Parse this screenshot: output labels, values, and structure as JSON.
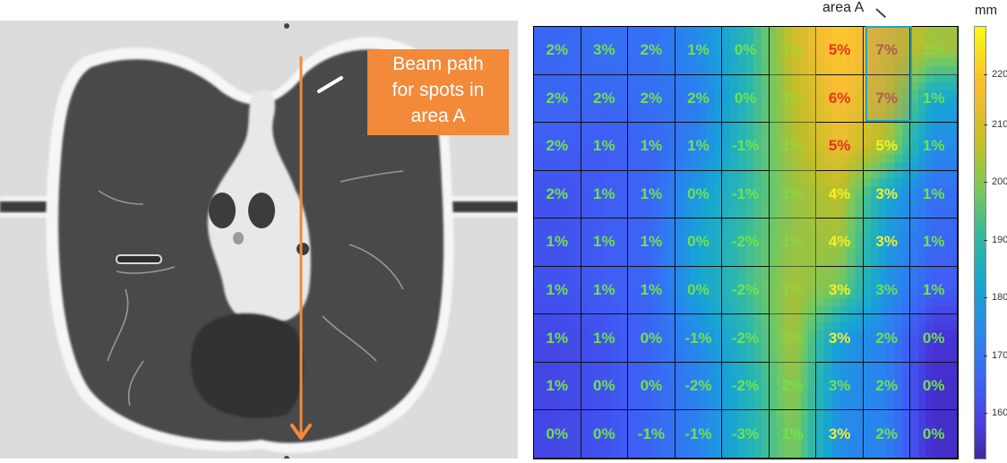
{
  "ct_panel": {
    "annotation": {
      "lines": [
        "Beam path",
        "for spots in",
        "area A"
      ],
      "color": "#f28a3a"
    },
    "beam_arrow_color": "#f28a3a"
  },
  "heatmap": {
    "area_label": "area A",
    "area_box_color": "#1fa3c9"
  },
  "colorbar": {
    "unit": "mm",
    "ticks": [
      "220",
      "210",
      "200",
      "190",
      "180",
      "170",
      "160"
    ]
  },
  "chart_data": {
    "type": "heatmap",
    "title": "",
    "xlabel": "",
    "ylabel": "",
    "grid": true,
    "rows": 9,
    "cols": 9,
    "cell_labels": [
      [
        "2%",
        "3%",
        "2%",
        "1%",
        "0%",
        "1%",
        "5%",
        "7%",
        "1%"
      ],
      [
        "2%",
        "2%",
        "2%",
        "2%",
        "0%",
        "1%",
        "6%",
        "7%",
        "1%"
      ],
      [
        "2%",
        "1%",
        "1%",
        "1%",
        "-1%",
        "1%",
        "5%",
        "5%",
        "1%"
      ],
      [
        "2%",
        "1%",
        "1%",
        "0%",
        "-1%",
        "1%",
        "4%",
        "3%",
        "1%"
      ],
      [
        "1%",
        "1%",
        "1%",
        "0%",
        "-2%",
        "1%",
        "4%",
        "3%",
        "1%"
      ],
      [
        "1%",
        "1%",
        "1%",
        "0%",
        "-2%",
        "1%",
        "3%",
        "3%",
        "1%"
      ],
      [
        "1%",
        "1%",
        "0%",
        "-1%",
        "-2%",
        "2%",
        "3%",
        "2%",
        "0%"
      ],
      [
        "1%",
        "0%",
        "0%",
        "-2%",
        "-2%",
        "2%",
        "3%",
        "2%",
        "0%"
      ],
      [
        "0%",
        "0%",
        "-1%",
        "-1%",
        "-3%",
        "1%",
        "3%",
        "2%",
        "0%"
      ]
    ],
    "label_colors": [
      [
        "green",
        "green",
        "green",
        "green",
        "green",
        "faded",
        "red",
        "darkred",
        "faded"
      ],
      [
        "green",
        "green",
        "green",
        "green",
        "green",
        "faded",
        "red",
        "darkred",
        "green"
      ],
      [
        "green",
        "green",
        "green",
        "green",
        "green",
        "faded",
        "red",
        "yellow",
        "green"
      ],
      [
        "green",
        "green",
        "green",
        "green",
        "green",
        "faded",
        "yellow",
        "yellow",
        "green"
      ],
      [
        "green",
        "green",
        "green",
        "green",
        "green",
        "faded",
        "yellow",
        "yellow",
        "green"
      ],
      [
        "green",
        "green",
        "green",
        "green",
        "green",
        "faded",
        "yellow",
        "green",
        "green"
      ],
      [
        "green",
        "green",
        "green",
        "green",
        "green",
        "faded",
        "yellow",
        "green",
        "green"
      ],
      [
        "green",
        "green",
        "green",
        "green",
        "green",
        "green",
        "green",
        "green",
        "green"
      ],
      [
        "green",
        "green",
        "green",
        "green",
        "green",
        "green",
        "yellow",
        "green",
        "green"
      ]
    ],
    "approx_range_mm": [
      [
        170,
        172,
        172,
        178,
        190,
        210,
        218,
        212,
        205
      ],
      [
        170,
        170,
        172,
        175,
        190,
        208,
        216,
        210,
        185
      ],
      [
        168,
        168,
        170,
        176,
        192,
        206,
        214,
        206,
        178
      ],
      [
        166,
        168,
        170,
        182,
        192,
        204,
        208,
        185,
        172
      ],
      [
        166,
        168,
        170,
        184,
        194,
        204,
        205,
        182,
        170
      ],
      [
        166,
        168,
        170,
        184,
        194,
        206,
        200,
        180,
        168
      ],
      [
        164,
        166,
        170,
        178,
        190,
        206,
        182,
        176,
        160
      ],
      [
        164,
        166,
        170,
        176,
        188,
        204,
        180,
        176,
        158
      ],
      [
        164,
        166,
        170,
        176,
        188,
        202,
        178,
        176,
        158
      ]
    ],
    "highlight": {
      "label": "area A",
      "rows": [
        0,
        1
      ],
      "col": 7
    },
    "colorbar": {
      "label": "mm",
      "range": [
        153,
        227
      ],
      "ticks": [
        160,
        170,
        180,
        190,
        200,
        210,
        220
      ],
      "colormap": "parula"
    }
  }
}
